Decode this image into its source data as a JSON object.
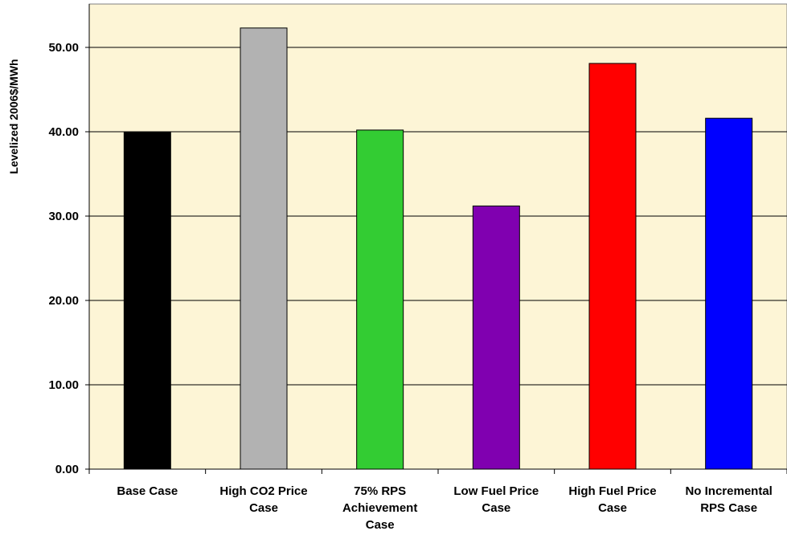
{
  "chart_data": {
    "type": "bar",
    "title": "",
    "xlabel": "",
    "ylabel": "Levelized 2006$/MWh",
    "ylim": [
      0,
      55
    ],
    "yticks": [
      "0.00",
      "10.00",
      "20.00",
      "30.00",
      "40.00",
      "50.00"
    ],
    "grid": true,
    "legend": "none",
    "categories": [
      [
        "Base Case"
      ],
      [
        "High CO2 Price",
        "Case"
      ],
      [
        "75% RPS",
        "Achievement",
        "Case"
      ],
      [
        "Low Fuel Price",
        "Case"
      ],
      [
        "High Fuel Price",
        "Case"
      ],
      [
        "No Incremental",
        "RPS Case"
      ]
    ],
    "values": [
      39.9,
      52.3,
      40.2,
      31.2,
      48.1,
      41.6
    ],
    "colors": [
      "#000000",
      "#b2b2b2",
      "#33cc33",
      "#8000b0",
      "#ff0000",
      "#0000ff"
    ],
    "plot_background": "#fdf5d6"
  }
}
